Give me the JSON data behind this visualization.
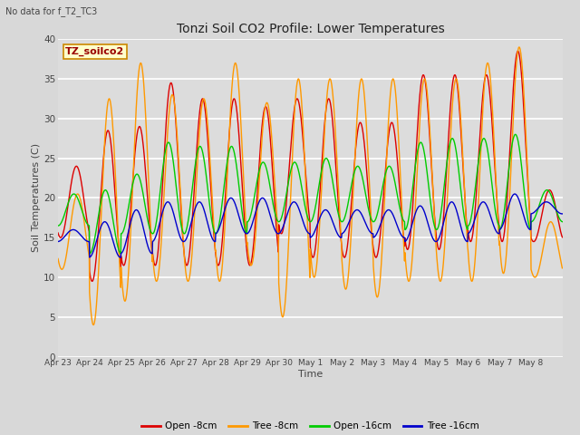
{
  "title": "Tonzi Soil CO2 Profile: Lower Temperatures",
  "subtitle": "No data for f_T2_TC3",
  "xlabel": "Time",
  "ylabel": "Soil Temperatures (C)",
  "ylim": [
    0,
    40
  ],
  "yticks": [
    0,
    5,
    10,
    15,
    20,
    25,
    30,
    35,
    40
  ],
  "x_labels": [
    "Apr 23",
    "Apr 24",
    "Apr 25",
    "Apr 26",
    "Apr 27",
    "Apr 28",
    "Apr 29",
    "Apr 30",
    "May 1",
    "May 2",
    "May 3",
    "May 4",
    "May 5",
    "May 6",
    "May 7",
    "May 8"
  ],
  "colors": {
    "open_8cm": "#dd0000",
    "tree_8cm": "#ff9900",
    "open_16cm": "#00cc00",
    "tree_16cm": "#0000cc"
  },
  "legend_label_box": "TZ_soilco2",
  "legend_box_bg": "#ffffcc",
  "legend_box_border": "#cc8800",
  "fig_bg": "#d8d8d8",
  "plot_bg": "#dcdcdc",
  "n_days": 16,
  "open_8cm_min": [
    15.0,
    9.5,
    11.5,
    11.5,
    11.5,
    11.5,
    11.5,
    15.5,
    12.5,
    12.5,
    12.5,
    13.5,
    13.5,
    14.5,
    14.5,
    14.5
  ],
  "open_8cm_max": [
    24.0,
    28.5,
    29.0,
    34.5,
    32.5,
    32.5,
    31.5,
    32.5,
    32.5,
    29.5,
    29.5,
    35.5,
    35.5,
    35.5,
    38.5,
    21.0
  ],
  "tree_8cm_min": [
    11.0,
    4.0,
    7.0,
    9.5,
    9.5,
    9.5,
    11.5,
    5.0,
    10.0,
    8.5,
    7.5,
    9.5,
    9.5,
    9.5,
    10.5,
    10.0
  ],
  "tree_8cm_max": [
    20.5,
    32.5,
    37.0,
    33.0,
    32.5,
    37.0,
    32.0,
    35.0,
    35.0,
    35.0,
    35.0,
    35.0,
    35.0,
    37.0,
    39.0,
    17.0
  ],
  "open_16cm_min": [
    16.5,
    13.0,
    15.5,
    15.5,
    15.5,
    15.5,
    17.0,
    17.0,
    17.0,
    17.0,
    17.0,
    16.0,
    16.0,
    16.5,
    16.0,
    17.0
  ],
  "open_16cm_max": [
    20.5,
    21.0,
    23.0,
    27.0,
    26.5,
    26.5,
    24.5,
    24.5,
    25.0,
    24.0,
    24.0,
    27.0,
    27.5,
    27.5,
    28.0,
    21.0
  ],
  "tree_16cm_min": [
    14.5,
    12.5,
    13.0,
    14.5,
    14.5,
    15.5,
    15.5,
    15.5,
    15.0,
    15.5,
    15.0,
    14.5,
    14.5,
    15.5,
    16.0,
    18.0
  ],
  "tree_16cm_max": [
    16.0,
    17.0,
    18.5,
    19.5,
    19.5,
    20.0,
    20.0,
    19.5,
    18.5,
    18.5,
    18.5,
    19.0,
    19.5,
    19.5,
    20.5,
    19.5
  ]
}
